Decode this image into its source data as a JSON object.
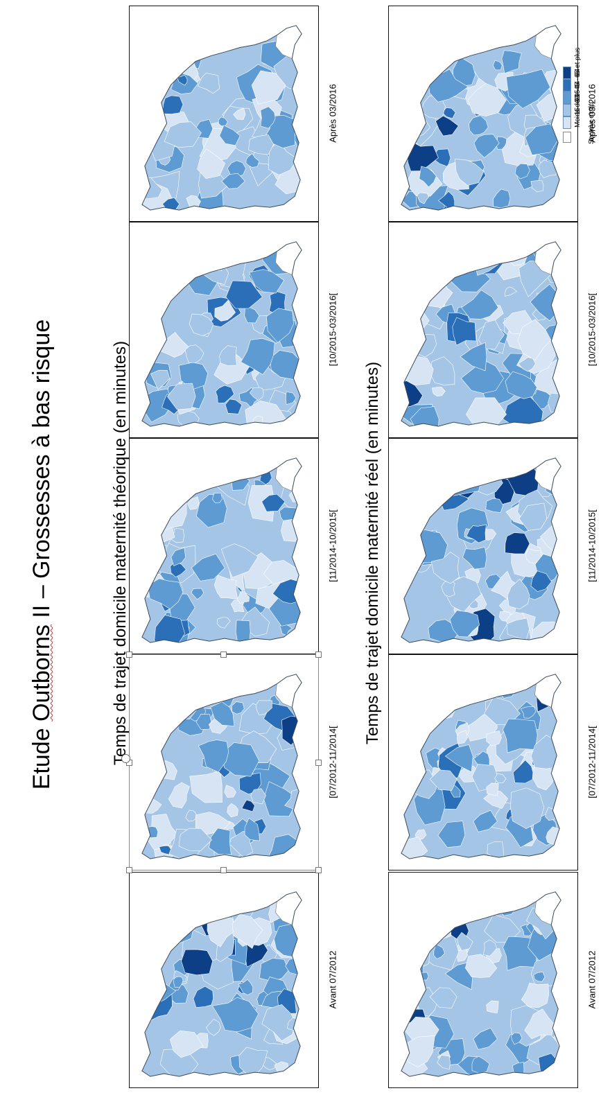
{
  "title": {
    "before": "Etude ",
    "underlined": "Outborns",
    "after": " II – Grossesses à bas risque"
  },
  "sections": [
    {
      "title": "Temps de trajet domicile maternité théorique (en minutes)"
    },
    {
      "title": "Temps de trajet domicile maternité réel (en minutes)"
    }
  ],
  "periods": [
    "Avant 07/2012",
    "[07/2012-11/2014[",
    "[11/2014-10/2015[",
    "[10/2015-03/2016[",
    "Après 03/2016"
  ],
  "legend": {
    "classes": [
      {
        "label": "Moins de 15",
        "color": "#d6e4f3"
      },
      {
        "label": "15 - 29",
        "color": "#a4c5e6"
      },
      {
        "label": "30 - 44",
        "color": "#5e9bd3"
      },
      {
        "label": "45 - 64",
        "color": "#2a6fb8"
      },
      {
        "label": "65 et plus",
        "color": "#0c3f86"
      }
    ],
    "excluded": {
      "label": "Secteur exclu",
      "color": "#ffffff"
    }
  }
}
